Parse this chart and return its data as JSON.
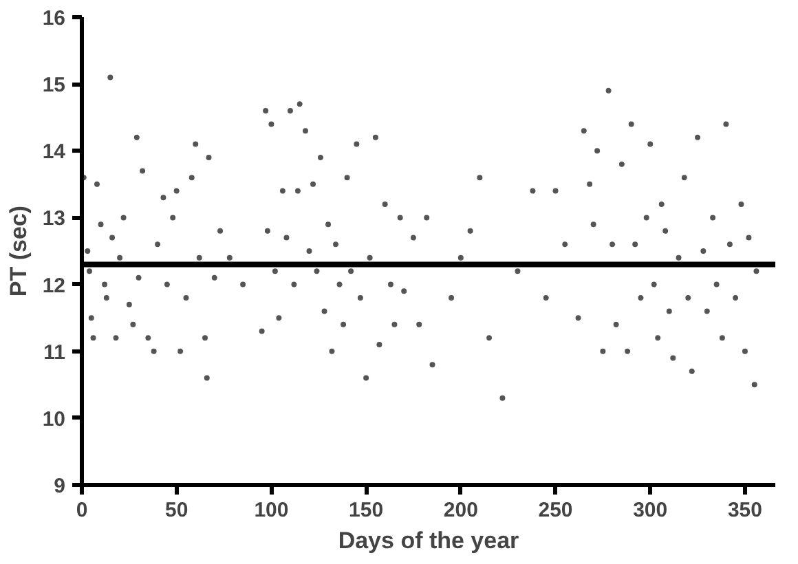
{
  "chart_data": {
    "type": "scatter",
    "xlabel": "Days of the year",
    "ylabel": "PT (sec)",
    "xlim": [
      0,
      366
    ],
    "ylim": [
      9,
      16
    ],
    "xticks": [
      0,
      50,
      100,
      150,
      200,
      250,
      300,
      350
    ],
    "yticks": [
      9,
      10,
      11,
      12,
      13,
      14,
      15,
      16
    ],
    "grid": false,
    "marker": "circle",
    "ref_lines": [
      {
        "axis": "y",
        "value": 12.3,
        "color": "#000000",
        "line_style": "solid"
      }
    ],
    "series": [
      {
        "color": "#555555",
        "x": [
          1,
          3,
          4,
          5,
          6,
          8,
          10,
          12,
          13,
          15,
          16,
          18,
          20,
          22,
          25,
          27,
          29,
          30,
          32,
          35,
          38,
          40,
          43,
          45,
          48,
          50,
          52,
          55,
          58,
          60,
          62,
          65,
          66,
          67,
          70,
          73,
          78,
          85,
          95,
          97,
          98,
          100,
          102,
          104,
          106,
          108,
          110,
          112,
          114,
          115,
          118,
          120,
          122,
          124,
          126,
          128,
          130,
          132,
          134,
          136,
          138,
          140,
          142,
          145,
          147,
          150,
          152,
          155,
          157,
          160,
          163,
          165,
          168,
          170,
          175,
          178,
          182,
          185,
          195,
          200,
          205,
          210,
          215,
          222,
          230,
          238,
          245,
          250,
          255,
          262,
          265,
          268,
          270,
          272,
          275,
          278,
          280,
          282,
          285,
          288,
          290,
          292,
          295,
          298,
          300,
          302,
          304,
          306,
          308,
          310,
          312,
          315,
          318,
          320,
          322,
          325,
          328,
          330,
          333,
          335,
          338,
          340,
          342,
          345,
          348,
          350,
          352,
          355,
          356
        ],
        "values": [
          13.6,
          12.5,
          12.2,
          11.5,
          11.2,
          13.5,
          12.9,
          12.0,
          11.8,
          15.1,
          12.7,
          11.2,
          12.4,
          13.0,
          11.7,
          11.4,
          14.2,
          12.1,
          13.7,
          11.2,
          11.0,
          12.6,
          13.3,
          12.0,
          13.0,
          13.4,
          11.0,
          11.8,
          13.6,
          14.1,
          12.4,
          11.2,
          10.6,
          13.9,
          12.1,
          12.8,
          12.4,
          12.0,
          11.3,
          14.6,
          12.8,
          14.4,
          12.2,
          11.5,
          13.4,
          12.7,
          14.6,
          12.0,
          13.4,
          14.7,
          14.3,
          12.5,
          13.5,
          12.2,
          13.9,
          11.6,
          12.9,
          11.0,
          12.6,
          12.0,
          11.4,
          13.6,
          12.2,
          14.1,
          11.8,
          10.6,
          12.4,
          14.2,
          11.1,
          13.2,
          12.0,
          11.4,
          13.0,
          11.9,
          12.7,
          11.4,
          13.0,
          10.8,
          11.8,
          12.4,
          12.8,
          13.6,
          11.2,
          10.3,
          12.2,
          13.4,
          11.8,
          13.4,
          12.6,
          11.5,
          14.3,
          13.5,
          12.9,
          14.0,
          11.0,
          14.9,
          12.6,
          11.4,
          13.8,
          11.0,
          14.4,
          12.6,
          11.8,
          13.0,
          14.1,
          12.0,
          11.2,
          13.2,
          12.8,
          11.6,
          10.9,
          12.4,
          13.6,
          11.8,
          10.7,
          14.2,
          12.5,
          11.6,
          13.0,
          12.0,
          11.2,
          14.4,
          12.6,
          11.8,
          13.2,
          11.0,
          12.7,
          10.5,
          12.2
        ]
      }
    ]
  }
}
